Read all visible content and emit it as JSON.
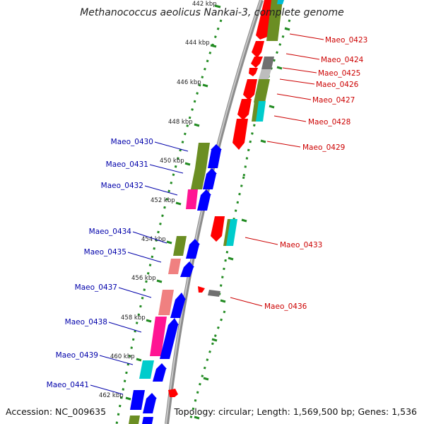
{
  "title": "Methanococcus aeolicus Nankai-3, complete genome",
  "footer": {
    "accession_label": "Accession:",
    "accession": "NC_009635",
    "topology_label": "Topology:",
    "topology": "circular",
    "length_label": "Length:",
    "length": "1,569,500 bp",
    "genes_label": "Genes:",
    "genes": "1,536"
  },
  "scale": {
    "unit": "kbp",
    "ticks": [
      "442 kbp",
      "444 kbp",
      "446 kbp",
      "448 kbp",
      "450 kbp",
      "452 kbp",
      "454 kbp",
      "456 kbp",
      "458 kbp",
      "460 kbp",
      "462 kbp"
    ]
  },
  "colors": {
    "forward_labels": "#cc0000",
    "reverse_labels": "#0000aa",
    "backbone": "#8c8c8c",
    "dotted_guide": "#228b22",
    "red": "#ff0000",
    "olive": "#6b8e23",
    "blue": "#0000ff",
    "magenta": "#ff1493",
    "pink": "#f08080",
    "cyan": "#00cccc",
    "gray": "#707070",
    "light_gray": "#bdbdbd"
  },
  "genes_forward": [
    {
      "label": "Maeo_0423",
      "color": "olive"
    },
    {
      "label": "Maeo_0424",
      "color": "red"
    },
    {
      "label": "Maeo_0425",
      "color": "gray"
    },
    {
      "label": "Maeo_0426",
      "color": "light_gray"
    },
    {
      "label": "Maeo_0427",
      "color": "olive"
    },
    {
      "label": "Maeo_0428",
      "color": "cyan"
    },
    {
      "label": "Maeo_0429",
      "color": "red"
    },
    {
      "label": "Maeo_0433",
      "color": "cyan"
    },
    {
      "label": "Maeo_0436",
      "color": "gray"
    }
  ],
  "genes_reverse": [
    {
      "label": "Maeo_0430",
      "color": "olive"
    },
    {
      "label": "Maeo_0431",
      "color": "olive"
    },
    {
      "label": "Maeo_0432",
      "color": "magenta"
    },
    {
      "label": "Maeo_0434",
      "color": "olive"
    },
    {
      "label": "Maeo_0435",
      "color": "pink"
    },
    {
      "label": "Maeo_0437",
      "color": "pink"
    },
    {
      "label": "Maeo_0438",
      "color": "magenta"
    },
    {
      "label": "Maeo_0439",
      "color": "cyan"
    },
    {
      "label": "Maeo_0441",
      "color": "blue"
    }
  ]
}
